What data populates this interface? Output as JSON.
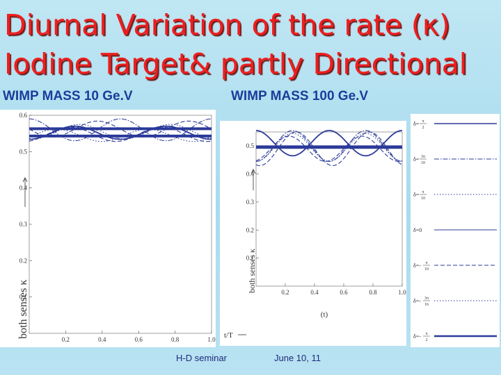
{
  "slide": {
    "title_line1": "Diurnal Variation of the rate (κ)",
    "title_line2": "Iodine Target& partly Directional",
    "subtitle_left": "WIMP MASS 10 Ge.V",
    "subtitle_right": "WIMP MASS 100 Ge.V",
    "footer_left": "H-D seminar",
    "footer_right": "June 10, 11"
  },
  "colors": {
    "line": "#2b3a99",
    "title": "#ee1e1e",
    "subtitle": "#1b3d9a"
  },
  "chart_data": [
    {
      "type": "line",
      "title": "WIMP MASS 10 Ge.V",
      "ylabel": "both senses κ",
      "xlabel": "",
      "xlim": [
        0,
        1
      ],
      "ylim": [
        0,
        0.6
      ],
      "xticks": [
        0.2,
        0.4,
        0.6,
        0.8,
        1.0
      ],
      "xtick_labels": [
        "0.2",
        "0.4",
        "0.6",
        "0.8",
        "1.0"
      ],
      "yticks": [
        0.1,
        0.2,
        0.3,
        0.4,
        0.5,
        0.6
      ],
      "ytick_labels": [
        "0.1",
        "0.2",
        "0.3",
        "0.4",
        "0.5",
        "0.6"
      ],
      "series": [
        {
          "name": "δ=π/2 (constant)",
          "mean": 0.563,
          "amplitude": 0.0,
          "phase": 0.0,
          "style": "thick"
        },
        {
          "name": "δ=π/2",
          "mean": 0.562,
          "amplitude": 0.022,
          "phase": 0.25,
          "style": "dash"
        },
        {
          "name": "δ=3π/10",
          "mean": 0.56,
          "amplitude": 0.03,
          "phase": 0.0,
          "style": "dashdot"
        },
        {
          "name": "δ=π/10",
          "mean": 0.555,
          "amplitude": 0.02,
          "phase": 0.45,
          "style": "dot"
        },
        {
          "name": "δ=0",
          "mean": 0.552,
          "amplitude": 0.018,
          "phase": 0.5,
          "style": "solid"
        },
        {
          "name": "δ=-π/10",
          "mean": 0.548,
          "amplitude": 0.02,
          "phase": 0.55,
          "style": "dash"
        },
        {
          "name": "δ=-3π/16",
          "mean": 0.545,
          "amplitude": 0.017,
          "phase": 0.7,
          "style": "dot"
        },
        {
          "name": "δ=-π/2 (constant)",
          "mean": 0.543,
          "amplitude": 0.0,
          "phase": 0.0,
          "style": "thick"
        }
      ]
    },
    {
      "type": "line",
      "title": "WIMP MASS 100 Ge.V",
      "ylabel": "both senses κ",
      "xlabel": "t/T",
      "xlim": [
        0,
        1
      ],
      "ylim": [
        0,
        0.55
      ],
      "xticks": [
        0.2,
        0.4,
        0.6,
        0.8,
        1.0
      ],
      "xtick_labels": [
        "0.2",
        "0.4",
        "0.6",
        "0.8",
        "1.0"
      ],
      "yticks": [
        0.1,
        0.2,
        0.3,
        0.4,
        0.5
      ],
      "ytick_labels": [
        "0.1",
        "0.2",
        "0.3",
        "0.4",
        "0.5"
      ],
      "series": [
        {
          "name": "δ=π/2 (constant)",
          "mean": 0.497,
          "amplitude": 0.0,
          "phase": 0.0,
          "style": "thick"
        },
        {
          "name": "δ=π/2",
          "mean": 0.51,
          "amplitude": 0.045,
          "phase": 0.0,
          "style": "solid"
        },
        {
          "name": "δ=3π/10",
          "mean": 0.5,
          "amplitude": 0.055,
          "phase": 0.5,
          "style": "dashdot"
        },
        {
          "name": "δ=π/10",
          "mean": 0.495,
          "amplitude": 0.05,
          "phase": 0.5,
          "style": "dot"
        },
        {
          "name": "δ=0",
          "mean": 0.49,
          "amplitude": 0.045,
          "phase": 0.55,
          "style": "dash"
        },
        {
          "name": "δ=-π/10",
          "mean": 0.49,
          "amplitude": 0.06,
          "phase": 0.45,
          "style": "dash"
        },
        {
          "name": "δ=-π/2 (constant)",
          "mean": 0.495,
          "amplitude": 0.0,
          "phase": 0.0,
          "style": "thick"
        }
      ]
    }
  ],
  "legend": {
    "items": [
      {
        "prefix": "δ=",
        "num": "π",
        "den": "2",
        "style": "solid"
      },
      {
        "prefix": "δ=",
        "num": "3π",
        "den": "10",
        "style": "dashdot"
      },
      {
        "prefix": "δ=",
        "num": "π",
        "den": "10",
        "style": "dot"
      },
      {
        "prefix": "δ=0",
        "num": "",
        "den": "",
        "style": "solid-thin"
      },
      {
        "prefix": "δ=-",
        "num": "π",
        "den": "10",
        "style": "dash"
      },
      {
        "prefix": "δ=-",
        "num": "3π",
        "den": "16",
        "style": "dot"
      },
      {
        "prefix": "δ=-",
        "num": "π",
        "den": "2",
        "style": "thick"
      }
    ]
  }
}
